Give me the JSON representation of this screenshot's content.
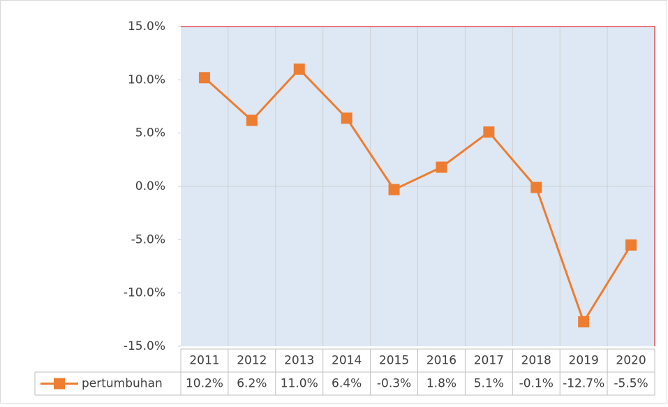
{
  "chart_data": {
    "type": "line",
    "categories": [
      "2011",
      "2012",
      "2013",
      "2014",
      "2015",
      "2016",
      "2017",
      "2018",
      "2019",
      "2020"
    ],
    "series": [
      {
        "name": "pertumbuhan",
        "color": "#ed7d31",
        "values": [
          10.2,
          6.2,
          11.0,
          6.4,
          -0.3,
          1.8,
          5.1,
          -0.1,
          -12.7,
          -5.5
        ],
        "value_labels": [
          "10.2%",
          "6.2%",
          "11.0%",
          "6.4%",
          "-0.3%",
          "1.8%",
          "5.1%",
          "-0.1%",
          "-12.7%",
          "-5.5%"
        ]
      }
    ],
    "ylim": [
      -15,
      15
    ],
    "yticks": [
      {
        "value": -15,
        "label": "-15.0%"
      },
      {
        "value": -10,
        "label": "-10.0%"
      },
      {
        "value": -5,
        "label": "-5.0%"
      },
      {
        "value": 0,
        "label": "0.0%"
      },
      {
        "value": 5,
        "label": "5.0%"
      },
      {
        "value": 10,
        "label": "10.0%"
      },
      {
        "value": 15,
        "label": "15.0%"
      }
    ],
    "plot_background": "#dde8f4"
  }
}
